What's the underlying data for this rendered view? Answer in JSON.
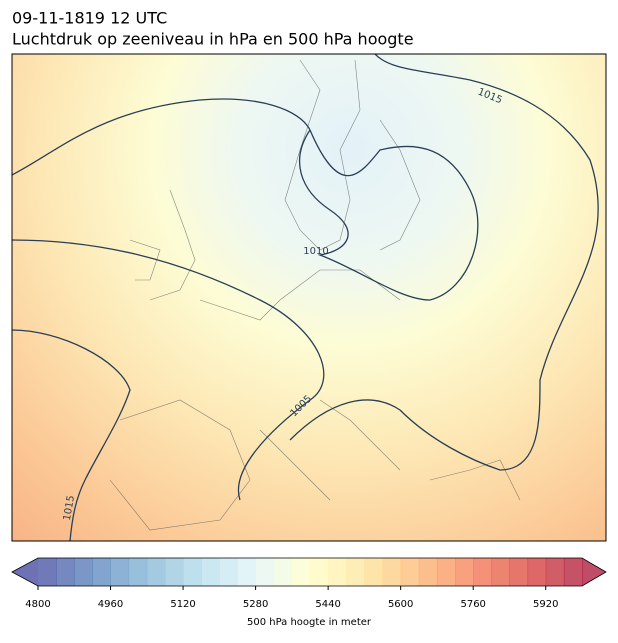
{
  "header": {
    "title": "09-11-1819 12 UTC",
    "subtitle": "Luchtdruk op zeeniveau in hPa en 500 hPa hoogte"
  },
  "map": {
    "contour_labels": [
      "1015",
      "1010",
      "1005",
      "1015"
    ]
  },
  "colorbar": {
    "label": "500 hPa hoogte in meter",
    "lim": [
      4800,
      6000
    ],
    "step": 40,
    "ticks": [
      4800,
      4960,
      5120,
      5280,
      5440,
      5600,
      5760,
      5920
    ],
    "colors": [
      "#313695",
      "#4575b4",
      "#74add1",
      "#abd9e9",
      "#e0f3f8",
      "#ffffbf",
      "#fee090",
      "#fdae61",
      "#f46d43",
      "#d73027",
      "#a50026"
    ],
    "opacity": 0.7
  }
}
